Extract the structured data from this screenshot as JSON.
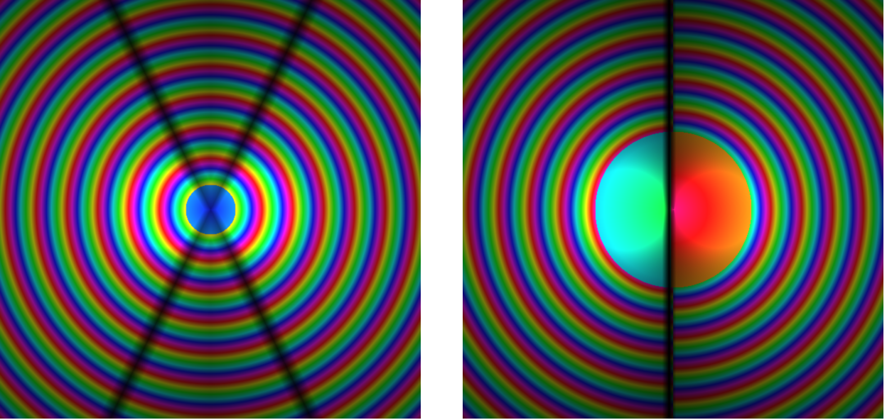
{
  "figure": {
    "panels": [
      {
        "id": "dipole",
        "pattern": "symmetric-lobes",
        "center_hue": "blue"
      },
      {
        "id": "antisymmetric",
        "pattern": "antisymmetric-lobes",
        "left_lobe_hue": "green",
        "right_lobe_hue": "magenta"
      }
    ],
    "colors": {
      "background": "#ffffff",
      "field_base": "#000000"
    }
  }
}
